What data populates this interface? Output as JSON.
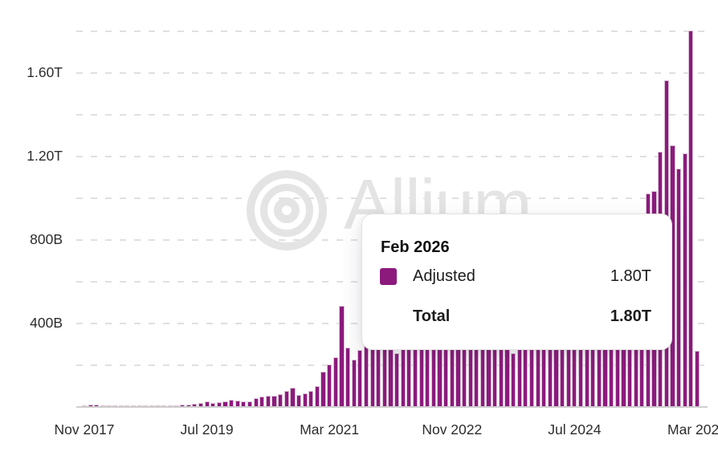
{
  "colors": {
    "bar": "#8c1a7d",
    "bar_stroke": "#d9c0d5",
    "grid": "#e0e0e0",
    "axis": "#cfcfcf",
    "text": "#2d2d2d",
    "watermark": "#e4e4e4",
    "tooltip_border": "#e3e3e3"
  },
  "watermark": {
    "brand": "Allium",
    "logo_icon": "concentric-circles-icon"
  },
  "tooltip": {
    "title": "Feb 2026",
    "rows": [
      {
        "swatch": true,
        "label": "Adjusted",
        "value": "1.80T",
        "bold": false
      },
      {
        "swatch": false,
        "label": "Total",
        "value": "1.80T",
        "bold": true
      }
    ]
  },
  "chart_data": {
    "type": "bar",
    "title": "",
    "value_unit": "B",
    "ylim": [
      0,
      1850
    ],
    "grid": "dashed-horizontal",
    "gridline_values": [
      200,
      400,
      600,
      800,
      1000,
      1200,
      1400,
      1600,
      1800
    ],
    "y_ticks": [
      {
        "value": 400,
        "label": "400B"
      },
      {
        "value": 800,
        "label": "800B"
      },
      {
        "value": 1200,
        "label": "1.20T"
      },
      {
        "value": 1600,
        "label": "1.60T"
      }
    ],
    "x_ticks": [
      {
        "label": "Nov 2017",
        "month_index": 0
      },
      {
        "label": "Jul 2019",
        "month_index": 20
      },
      {
        "label": "Mar 2021",
        "month_index": 40
      },
      {
        "label": "Nov 2022",
        "month_index": 60
      },
      {
        "label": "Jul 2024",
        "month_index": 80
      },
      {
        "label": "Mar 2026",
        "month_index": 100
      }
    ],
    "months": [
      "Nov 2017",
      "Dec 2017",
      "Jan 2018",
      "Feb 2018",
      "Mar 2018",
      "Apr 2018",
      "May 2018",
      "Jun 2018",
      "Jul 2018",
      "Aug 2018",
      "Sep 2018",
      "Oct 2018",
      "Nov 2018",
      "Dec 2018",
      "Jan 2019",
      "Feb 2019",
      "Mar 2019",
      "Apr 2019",
      "May 2019",
      "Jun 2019",
      "Jul 2019",
      "Aug 2019",
      "Sep 2019",
      "Oct 2019",
      "Nov 2019",
      "Dec 2019",
      "Jan 2020",
      "Feb 2020",
      "Mar 2020",
      "Apr 2020",
      "May 2020",
      "Jun 2020",
      "Jul 2020",
      "Aug 2020",
      "Sep 2020",
      "Oct 2020",
      "Nov 2020",
      "Dec 2020",
      "Jan 2021",
      "Feb 2021",
      "Mar 2021",
      "Apr 2021",
      "May 2021",
      "Jun 2021",
      "Jul 2021",
      "Aug 2021",
      "Sep 2021",
      "Oct 2021",
      "Nov 2021",
      "Dec 2021",
      "Jan 2022",
      "Feb 2022",
      "Mar 2022",
      "Apr 2022",
      "May 2022",
      "Jun 2022",
      "Jul 2022",
      "Aug 2022",
      "Sep 2022",
      "Oct 2022",
      "Nov 2022",
      "Dec 2022",
      "Jan 2023",
      "Feb 2023",
      "Mar 2023",
      "Apr 2023",
      "May 2023",
      "Jun 2023",
      "Jul 2023",
      "Aug 2023",
      "Sep 2023",
      "Oct 2023",
      "Nov 2023",
      "Dec 2023",
      "Jan 2024",
      "Feb 2024",
      "Mar 2024",
      "Apr 2024",
      "May 2024",
      "Jun 2024",
      "Jul 2024",
      "Aug 2024",
      "Sep 2024",
      "Oct 2024",
      "Nov 2024",
      "Dec 2024",
      "Jan 2025",
      "Feb 2025",
      "Mar 2025",
      "Apr 2025",
      "May 2025",
      "Jun 2025",
      "Jul 2025",
      "Aug 2025",
      "Sep 2025",
      "Oct 2025",
      "Nov 2025",
      "Dec 2025",
      "Jan 2026",
      "Feb 2026",
      "Mar 2026"
    ],
    "series": [
      {
        "name": "Adjusted",
        "values": [
          4,
          6,
          7,
          5,
          5,
          4,
          4,
          4,
          3,
          3,
          3,
          4,
          4,
          4,
          4,
          5,
          6,
          9,
          12,
          17,
          25,
          17,
          20,
          24,
          30,
          28,
          25,
          23,
          38,
          46,
          50,
          50,
          56,
          75,
          90,
          55,
          62,
          75,
          97,
          165,
          200,
          235,
          480,
          280,
          225,
          270,
          310,
          380,
          420,
          400,
          390,
          255,
          340,
          390,
          460,
          420,
          340,
          330,
          360,
          390,
          450,
          330,
          320,
          350,
          420,
          360,
          340,
          320,
          310,
          290,
          255,
          300,
          360,
          400,
          420,
          450,
          550,
          520,
          480,
          450,
          470,
          460,
          440,
          500,
          600,
          650,
          620,
          560,
          590,
          640,
          720,
          850,
          1020,
          1030,
          1220,
          1560,
          1250,
          1140,
          1210,
          1800,
          265
        ]
      }
    ],
    "highlighted_point": {
      "month": "Feb 2026",
      "adjusted": "1.80T",
      "total": "1.80T"
    }
  }
}
